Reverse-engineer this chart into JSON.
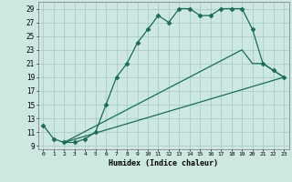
{
  "xlabel": "Humidex (Indice chaleur)",
  "background_color": "#cce8e0",
  "grid_color": "#aacccc",
  "line_color": "#1a6b5a",
  "xlim": [
    -0.5,
    23.5
  ],
  "ylim": [
    8.5,
    30
  ],
  "xticks": [
    0,
    1,
    2,
    3,
    4,
    5,
    6,
    7,
    8,
    9,
    10,
    11,
    12,
    13,
    14,
    15,
    16,
    17,
    18,
    19,
    20,
    21,
    22,
    23
  ],
  "yticks": [
    9,
    11,
    13,
    15,
    17,
    19,
    21,
    23,
    25,
    27,
    29
  ],
  "series1_x": [
    0,
    1,
    2,
    3,
    4,
    5,
    6,
    7,
    8,
    9,
    10,
    11,
    12,
    13,
    14,
    15,
    16,
    17,
    18,
    19,
    20,
    21,
    22,
    23
  ],
  "series1_y": [
    12,
    10,
    9.5,
    9.5,
    10,
    11,
    15,
    19,
    21,
    24,
    26,
    28,
    27,
    29,
    29,
    28,
    28,
    29,
    29,
    29,
    26,
    21,
    20,
    19
  ],
  "series2_x": [
    2,
    23
  ],
  "series2_y": [
    9.5,
    19
  ],
  "series3_x": [
    2,
    19,
    20,
    21,
    22,
    23
  ],
  "series3_y": [
    9.5,
    23,
    21,
    21,
    20,
    19
  ]
}
